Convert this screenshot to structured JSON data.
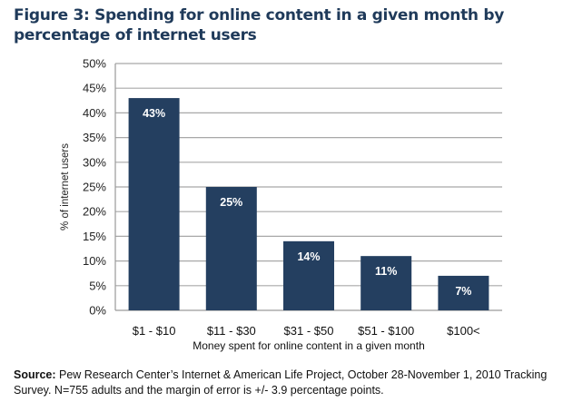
{
  "chart_data": {
    "type": "bar",
    "title": "Figure 3: Spending for online content in a given month by percentage of internet users",
    "xlabel": "Money spent for online content in a given month",
    "ylabel": "% of internet users",
    "categories": [
      "$1 - $10",
      "$11 - $30",
      "$31 - $50",
      "$51 - $100",
      "$100<"
    ],
    "values": [
      43,
      25,
      14,
      11,
      7
    ],
    "data_labels": [
      "43%",
      "25%",
      "14%",
      "11%",
      "7%"
    ],
    "ylim": [
      0,
      50
    ],
    "yticks": [
      0,
      5,
      10,
      15,
      20,
      25,
      30,
      35,
      40,
      45,
      50
    ],
    "ytick_labels": [
      "0%",
      "5%",
      "10%",
      "15%",
      "20%",
      "25%",
      "30%",
      "35%",
      "40%",
      "45%",
      "50%"
    ],
    "grid": true,
    "legend": "none",
    "bar_color": "#243f60"
  },
  "source": {
    "label": "Source:",
    "text": " Pew Research Center’s Internet & American Life Project, October 28-November 1, 2010 Tracking Survey. N=755 adults and the margin of error is +/- 3.9 percentage points."
  }
}
